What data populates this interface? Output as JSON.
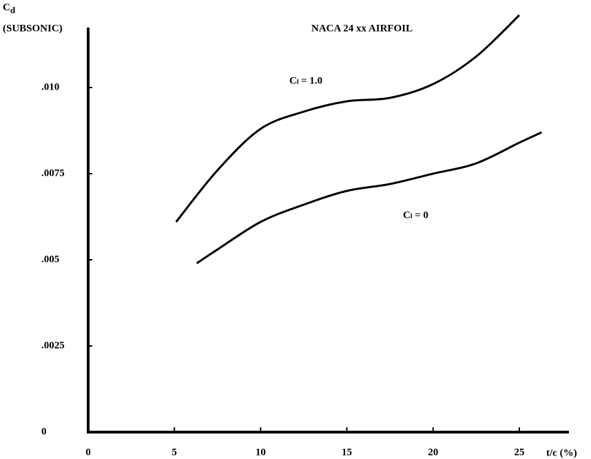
{
  "chart_data": {
    "type": "line",
    "title": "NACA 24 xx AIRFOIL",
    "y_label": {
      "symbol": "C",
      "subscript": "d",
      "note": "(SUBSONIC)"
    },
    "x_label": "t/c (%)",
    "xlim": [
      0,
      28
    ],
    "ylim": [
      0,
      0.012
    ],
    "xticks": [
      0,
      5,
      10,
      15,
      20,
      25
    ],
    "yticks": [
      0,
      {
        "value": 0.0025,
        "label": ".0025"
      },
      {
        "value": 0.005,
        "label": ".005"
      },
      {
        "value": 0.0075,
        "label": ".0075"
      },
      {
        "value": 0.01,
        "label": ".010"
      }
    ],
    "grid": false,
    "series": [
      {
        "name": "Cₗ = 1.0",
        "color": "#000000",
        "x": [
          5.1,
          7.5,
          10,
          12.5,
          15,
          17.5,
          20,
          22.5,
          25
        ],
        "values": [
          0.0061,
          0.0076,
          0.0088,
          0.0093,
          0.0096,
          0.0097,
          0.0101,
          0.0109,
          0.0121
        ]
      },
      {
        "name": "Cₗ = 0",
        "color": "#000000",
        "x": [
          6.3,
          7.5,
          10,
          12.5,
          15,
          17.5,
          20,
          22.5,
          25,
          26.3
        ],
        "values": [
          0.0049,
          0.0053,
          0.0061,
          0.0066,
          0.007,
          0.0072,
          0.0075,
          0.0078,
          0.0084,
          0.0087
        ]
      }
    ]
  }
}
